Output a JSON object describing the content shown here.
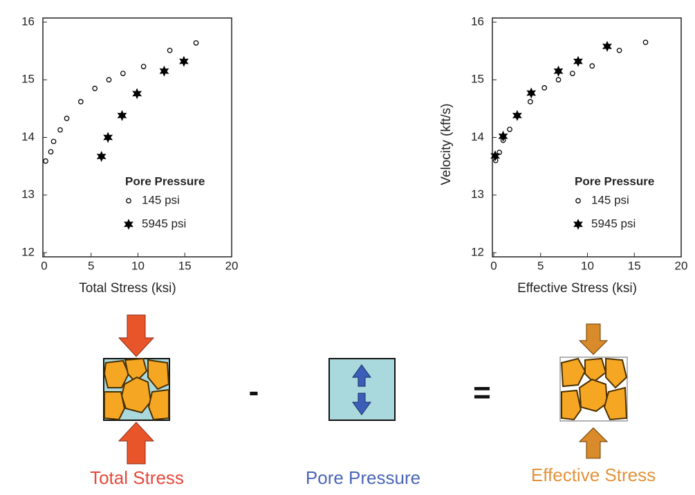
{
  "chart_data": [
    {
      "type": "scatter",
      "xlabel": "Total Stress (ksi)",
      "xlim": [
        0,
        20
      ],
      "ylim": [
        12,
        16
      ],
      "xticks": [
        0,
        5,
        10,
        15,
        20
      ],
      "yticks": [
        12,
        13,
        14,
        15,
        16
      ],
      "legend_title": "Pore Pressure",
      "legend": "lower right",
      "series": [
        {
          "name": "145 psi",
          "marker": "circle",
          "color": "#000000",
          "x": [
            0.15,
            0.7,
            1.0,
            1.7,
            2.4,
            3.9,
            5.4,
            6.9,
            8.4,
            10.6,
            13.4,
            16.2
          ],
          "values": [
            13.59,
            13.75,
            13.93,
            14.13,
            14.33,
            14.62,
            14.85,
            15.0,
            15.11,
            15.23,
            15.51,
            15.64
          ]
        },
        {
          "name": "5945 psi",
          "marker": "star",
          "color": "#000000",
          "x": [
            6.1,
            6.8,
            8.3,
            9.9,
            12.8,
            14.9
          ],
          "values": [
            13.67,
            14.0,
            14.38,
            14.76,
            15.15,
            15.32
          ]
        }
      ]
    },
    {
      "type": "scatter",
      "xlabel": "Effective Stress (ksi)",
      "ylabel": "Velocity (kft/s)",
      "xlim": [
        0,
        20
      ],
      "ylim": [
        12,
        16
      ],
      "xticks": [
        0,
        5,
        10,
        15,
        20
      ],
      "yticks": [
        12,
        13,
        14,
        15,
        16
      ],
      "legend_title": "Pore Pressure",
      "legend": "lower right",
      "series": [
        {
          "name": "145 psi",
          "marker": "circle",
          "color": "#000000",
          "x": [
            0.2,
            0.6,
            1.0,
            1.7,
            2.5,
            3.9,
            5.4,
            6.9,
            8.4,
            10.5,
            13.4,
            16.2
          ],
          "values": [
            13.6,
            13.74,
            13.95,
            14.14,
            14.37,
            14.62,
            14.86,
            15.0,
            15.11,
            15.24,
            15.51,
            15.65
          ]
        },
        {
          "name": "5945 psi",
          "marker": "star",
          "color": "#000000",
          "x": [
            0.15,
            1.0,
            2.5,
            4.0,
            6.9,
            9.0,
            12.1
          ],
          "values": [
            13.68,
            14.02,
            14.38,
            14.77,
            15.15,
            15.32,
            15.58
          ]
        }
      ]
    }
  ],
  "diagram": {
    "labels": [
      "Total Stress",
      "Pore Pressure",
      "Effective Stress"
    ],
    "operators": [
      "-",
      "="
    ]
  }
}
